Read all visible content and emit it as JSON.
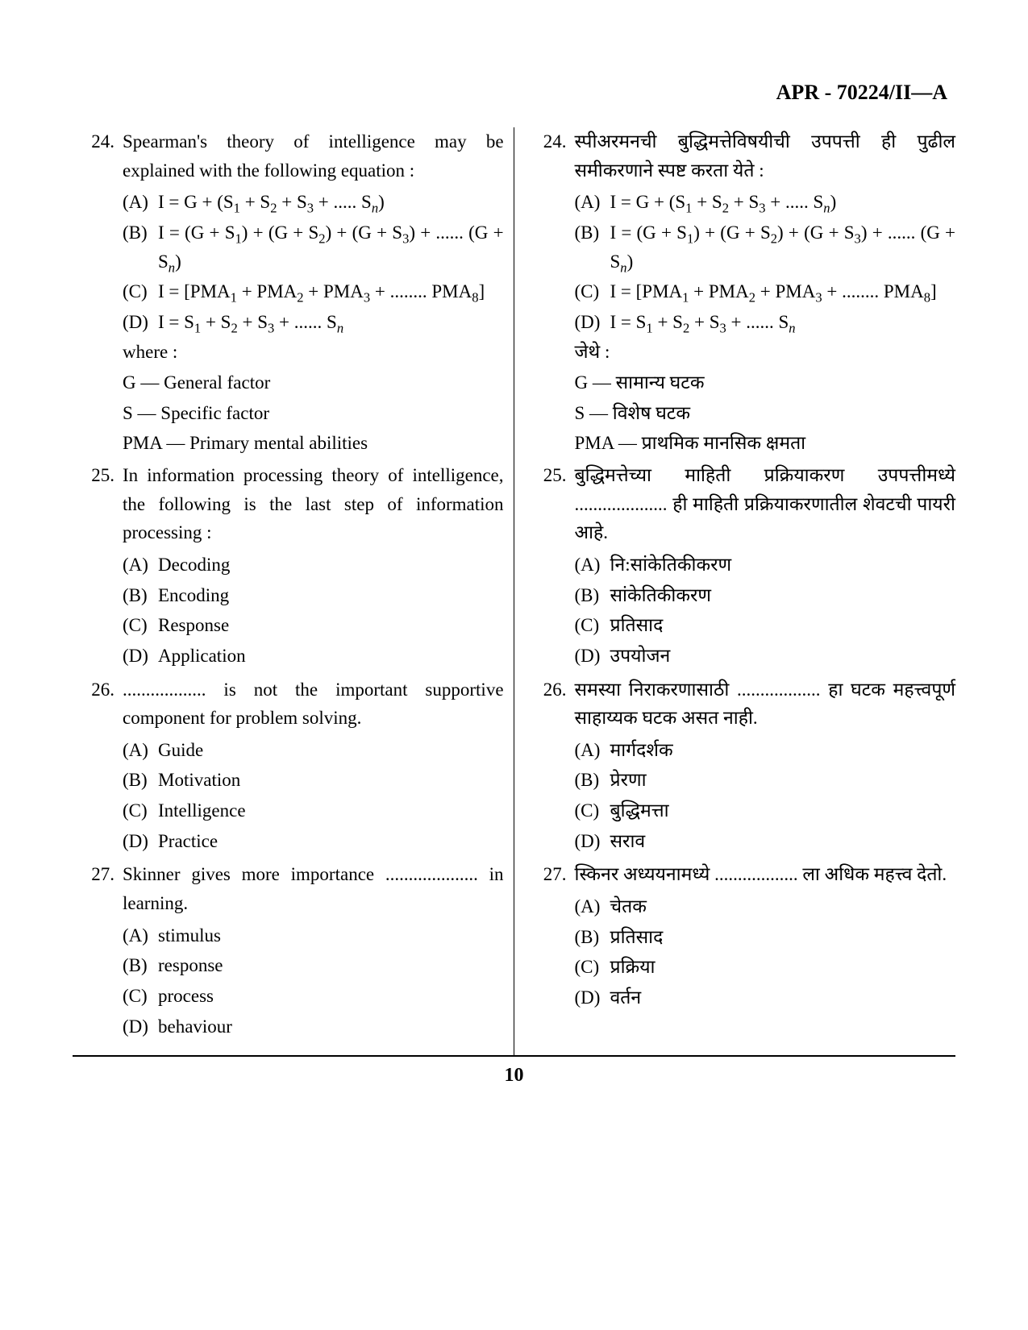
{
  "header": "APR - 70224/II—A",
  "page_number": "10",
  "left": {
    "questions": [
      {
        "num": "24.",
        "text": "Spearman's theory of intelligence may be explained with the following equation :",
        "options": [
          {
            "label": "(A)",
            "html": "I = G + (S<span class=\"sub\">1</span> + S<span class=\"sub\">2</span> + S<span class=\"sub\">3</span> + ..... S<span class=\"sub italic\">n</span>)"
          },
          {
            "label": "(B)",
            "html": "I = (G + S<span class=\"sub\">1</span>) + (G + S<span class=\"sub\">2</span>) + (G + S<span class=\"sub\">3</span>) + ...... (G + S<span class=\"sub italic\">n</span>)"
          },
          {
            "label": "(C)",
            "html": "I = [PMA<span class=\"sub\">1</span> + PMA<span class=\"sub\">2</span> + PMA<span class=\"sub\">3</span> + ........ PMA<span class=\"sub\">8</span>]"
          },
          {
            "label": "(D)",
            "html": "I = S<span class=\"sub\">1</span> + S<span class=\"sub\">2</span> + S<span class=\"sub\">3</span> + ...... S<span class=\"sub italic\">n</span>"
          }
        ],
        "where": "where :",
        "legend": [
          "G — General factor",
          "S — Specific factor",
          "PMA — Primary mental abilities"
        ]
      },
      {
        "num": "25.",
        "text": "In information processing theory of intelligence, the following is the last step of information processing :",
        "options": [
          {
            "label": "(A)",
            "html": "Decoding"
          },
          {
            "label": "(B)",
            "html": "Encoding"
          },
          {
            "label": "(C)",
            "html": "Response"
          },
          {
            "label": "(D)",
            "html": "Application"
          }
        ]
      },
      {
        "num": "26.",
        "text": ".................. is not the important supportive component for problem solving.",
        "options": [
          {
            "label": "(A)",
            "html": "Guide"
          },
          {
            "label": "(B)",
            "html": "Motivation"
          },
          {
            "label": "(C)",
            "html": "Intelligence"
          },
          {
            "label": "(D)",
            "html": "Practice"
          }
        ]
      },
      {
        "num": "27.",
        "text": "Skinner gives more importance .................... in learning.",
        "options": [
          {
            "label": "(A)",
            "html": "stimulus"
          },
          {
            "label": "(B)",
            "html": "response"
          },
          {
            "label": "(C)",
            "html": "process"
          },
          {
            "label": "(D)",
            "html": "behaviour"
          }
        ]
      }
    ]
  },
  "right": {
    "questions": [
      {
        "num": "24.",
        "text": "स्पीअरमनची बुद्धिमत्तेविषयीची उपपत्ती ही पुढील समीकरणाने स्पष्ट करता येते :",
        "options": [
          {
            "label": "(A)",
            "html": "I = G + (S<span class=\"sub\">1</span> + S<span class=\"sub\">2</span> + S<span class=\"sub\">3</span> + ..... S<span class=\"sub italic\">n</span>)"
          },
          {
            "label": "(B)",
            "html": "I = (G + S<span class=\"sub\">1</span>) + (G + S<span class=\"sub\">2</span>) + (G + S<span class=\"sub\">3</span>) + ...... (G + S<span class=\"sub italic\">n</span>)"
          },
          {
            "label": "(C)",
            "html": "I = [PMA<span class=\"sub\">1</span> + PMA<span class=\"sub\">2</span> + PMA<span class=\"sub\">3</span> + ........ PMA<span class=\"sub\">8</span>]"
          },
          {
            "label": "(D)",
            "html": "I = S<span class=\"sub\">1</span> + S<span class=\"sub\">2</span> + S<span class=\"sub\">3</span> + ...... S<span class=\"sub italic\">n</span>"
          }
        ],
        "where": "जेथे :",
        "legend": [
          "G — सामान्य घटक",
          "S — विशेष घटक",
          "PMA — प्राथमिक मानसिक क्षमता"
        ]
      },
      {
        "num": "25.",
        "text": "बुद्धिमत्तेच्या माहिती प्रक्रियाकरण उपपत्तीमध्ये .................... ही माहिती प्रक्रियाकरणातील शेवटची पायरी आहे.",
        "options": [
          {
            "label": "(A)",
            "html": "नि:सांकेतिकीकरण"
          },
          {
            "label": "(B)",
            "html": "सांकेतिकीकरण"
          },
          {
            "label": "(C)",
            "html": "प्रतिसाद"
          },
          {
            "label": "(D)",
            "html": "उपयोजन"
          }
        ]
      },
      {
        "num": "26.",
        "text": "समस्या निराकरणासाठी .................. हा घटक महत्त्वपूर्ण साहाय्यक घटक असत नाही.",
        "options": [
          {
            "label": "(A)",
            "html": "मार्गदर्शक"
          },
          {
            "label": "(B)",
            "html": "प्रेरणा"
          },
          {
            "label": "(C)",
            "html": "बुद्धिमत्ता"
          },
          {
            "label": "(D)",
            "html": "सराव"
          }
        ]
      },
      {
        "num": "27.",
        "text": "स्किनर अध्ययनामध्ये .................. ला अधिक महत्त्व देतो.",
        "options": [
          {
            "label": "(A)",
            "html": "चेतक"
          },
          {
            "label": "(B)",
            "html": "प्रतिसाद"
          },
          {
            "label": "(C)",
            "html": "प्रक्रिया"
          },
          {
            "label": "(D)",
            "html": "वर्तन"
          }
        ]
      }
    ]
  }
}
